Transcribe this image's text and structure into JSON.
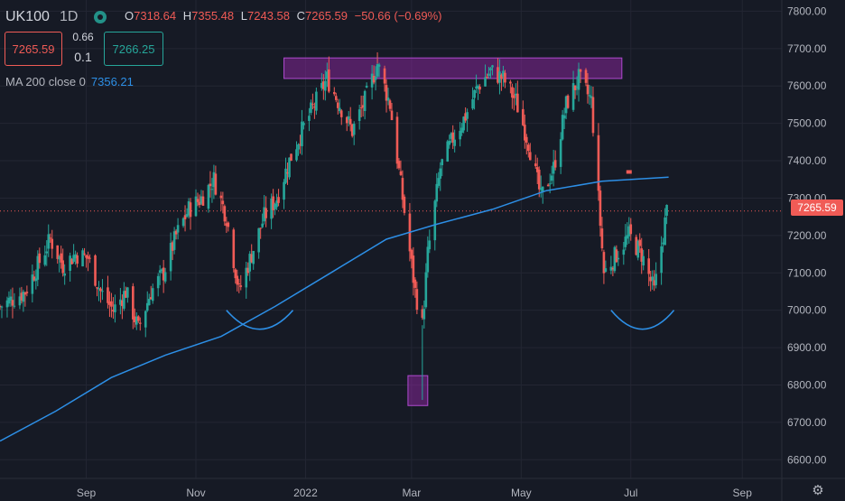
{
  "header": {
    "symbol": "UK100",
    "interval": "1D",
    "open_label": "O",
    "open": "7318.64",
    "high_label": "H",
    "high": "7355.48",
    "low_label": "L",
    "low": "7243.58",
    "close_label": "C",
    "close": "7265.59",
    "change": "−50.66 (−0.69%)",
    "bid": "7265.59",
    "ask": "7266.25",
    "spread_top": "0.66",
    "spread_bottom": "0.1",
    "ma_label": "MA 200 close 0",
    "ma_value": "7356.21",
    "last_price": "7265.59"
  },
  "colors": {
    "background": "#161a25",
    "up": "#26a69a",
    "down": "#f05b56",
    "ma": "#2d8fe6",
    "zone": "#9c27b0",
    "annotation": "#2d8fe6"
  },
  "chart_data": {
    "type": "candlestick",
    "y_axis": {
      "range": [
        6550,
        7830
      ],
      "ticks": [
        "6600.00",
        "6700.00",
        "6800.00",
        "6900.00",
        "7000.00",
        "7100.00",
        "7200.00",
        "7300.00",
        "7400.00",
        "7500.00",
        "7600.00",
        "7700.00",
        "7800.00"
      ],
      "position": "right"
    },
    "x_axis": {
      "range": [
        "2021-07-15",
        "2022-09-23"
      ],
      "ticks": [
        {
          "label": "Sep",
          "date": "2021-09-01"
        },
        {
          "label": "Nov",
          "date": "2021-11-01"
        },
        {
          "label": "2022",
          "date": "2022-01-01"
        },
        {
          "label": "Mar",
          "date": "2022-03-01"
        },
        {
          "label": "May",
          "date": "2022-05-01"
        },
        {
          "label": "Jul",
          "date": "2022-07-01"
        },
        {
          "label": "Sep",
          "date": "2022-09-01"
        }
      ]
    },
    "grid": true,
    "close_series": [
      [
        "2021-07-15",
        7010
      ],
      [
        "2021-07-22",
        7030
      ],
      [
        "2021-07-29",
        7050
      ],
      [
        "2021-08-05",
        7120
      ],
      [
        "2021-08-12",
        7190
      ],
      [
        "2021-08-19",
        7120
      ],
      [
        "2021-08-26",
        7150
      ],
      [
        "2021-09-02",
        7140
      ],
      [
        "2021-09-09",
        7050
      ],
      [
        "2021-09-16",
        7000
      ],
      [
        "2021-09-23",
        7050
      ],
      [
        "2021-09-30",
        6950
      ],
      [
        "2021-10-07",
        7050
      ],
      [
        "2021-10-14",
        7100
      ],
      [
        "2021-10-21",
        7200
      ],
      [
        "2021-10-28",
        7270
      ],
      [
        "2021-11-04",
        7300
      ],
      [
        "2021-11-11",
        7350
      ],
      [
        "2021-11-18",
        7250
      ],
      [
        "2021-11-25",
        7050
      ],
      [
        "2021-12-02",
        7150
      ],
      [
        "2021-12-09",
        7250
      ],
      [
        "2021-12-16",
        7300
      ],
      [
        "2021-12-23",
        7400
      ],
      [
        "2021-12-30",
        7480
      ],
      [
        "2022-01-06",
        7550
      ],
      [
        "2022-01-13",
        7620
      ],
      [
        "2022-01-20",
        7550
      ],
      [
        "2022-01-27",
        7480
      ],
      [
        "2022-02-03",
        7560
      ],
      [
        "2022-02-10",
        7660
      ],
      [
        "2022-02-17",
        7550
      ],
      [
        "2022-02-24",
        7300
      ],
      [
        "2022-03-03",
        7050
      ],
      [
        "2022-03-07",
        6960
      ],
      [
        "2022-03-10",
        7150
      ],
      [
        "2022-03-17",
        7380
      ],
      [
        "2022-03-24",
        7460
      ],
      [
        "2022-03-31",
        7520
      ],
      [
        "2022-04-07",
        7600
      ],
      [
        "2022-04-14",
        7640
      ],
      [
        "2022-04-21",
        7620
      ],
      [
        "2022-04-28",
        7560
      ],
      [
        "2022-05-05",
        7450
      ],
      [
        "2022-05-12",
        7300
      ],
      [
        "2022-05-19",
        7380
      ],
      [
        "2022-05-26",
        7550
      ],
      [
        "2022-06-02",
        7620
      ],
      [
        "2022-06-09",
        7560
      ],
      [
        "2022-06-16",
        7100
      ],
      [
        "2022-06-23",
        7150
      ],
      [
        "2022-06-30",
        7200
      ],
      [
        "2022-07-07",
        7150
      ],
      [
        "2022-07-14",
        7050
      ],
      [
        "2022-07-21",
        7265.59
      ]
    ],
    "extremes": {
      "high": {
        "date": "2022-02-10",
        "value": 7690
      },
      "low": {
        "date": "2022-03-07",
        "value": 6760
      }
    },
    "ma_200": [
      [
        "2021-07-15",
        6650
      ],
      [
        "2021-08-15",
        6730
      ],
      [
        "2021-09-15",
        6820
      ],
      [
        "2021-10-15",
        6880
      ],
      [
        "2021-11-15",
        6930
      ],
      [
        "2021-12-15",
        7010
      ],
      [
        "2022-01-15",
        7100
      ],
      [
        "2022-02-15",
        7190
      ],
      [
        "2022-03-15",
        7230
      ],
      [
        "2022-04-15",
        7270
      ],
      [
        "2022-05-15",
        7320
      ],
      [
        "2022-06-15",
        7345
      ],
      [
        "2022-07-22",
        7356.21
      ]
    ],
    "annotations": [
      {
        "type": "zone",
        "from": "2021-12-20",
        "to": "2022-06-26",
        "low": 7620,
        "high": 7675
      },
      {
        "type": "zone",
        "from": "2022-02-27",
        "to": "2022-03-10",
        "low": 6745,
        "high": 6825
      },
      {
        "type": "arc",
        "from": "2021-11-18",
        "to": "2021-12-25",
        "value": 7000
      },
      {
        "type": "arc",
        "from": "2022-06-20",
        "to": "2022-07-25",
        "value": 7000
      },
      {
        "type": "marker",
        "date": "2022-06-30",
        "value": 7370
      }
    ]
  }
}
